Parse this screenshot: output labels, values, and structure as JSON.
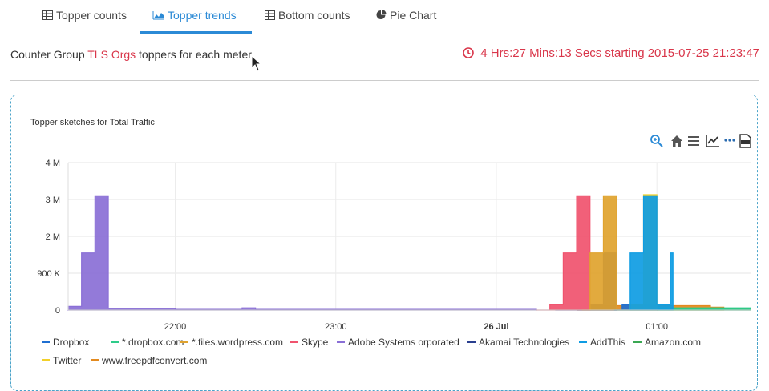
{
  "tabs": [
    {
      "label": "Topper counts",
      "icon": "table-icon",
      "active": false
    },
    {
      "label": "Topper trends",
      "icon": "area-chart-icon",
      "active": true
    },
    {
      "label": "Bottom counts",
      "icon": "table-icon",
      "active": false
    },
    {
      "label": "Pie Chart",
      "icon": "pie-chart-icon",
      "active": false
    }
  ],
  "header": {
    "prefix": "Counter Group",
    "group": "TLS Orgs",
    "suffix": "toppers for each meter",
    "timer": "4 Hrs:27 Mins:13 Secs starting 2015-07-25 21:23:47"
  },
  "toolbar": [
    "zoom-icon",
    "home-icon",
    "menu-icon",
    "line-chart-icon",
    "more-icon",
    "pdf-icon"
  ],
  "colors": {
    "accent": "#2b8ad6",
    "alert": "#d9364a",
    "panel_border": "#4aa3c9"
  },
  "chart_data": {
    "type": "area",
    "title": "Topper sketches for Total Traffic",
    "xlabel": "",
    "ylabel": "",
    "x_tick_labels": [
      "22:00",
      "23:00",
      "26 Jul",
      "01:00"
    ],
    "y_tick_labels": [
      "0",
      "900 K",
      "2 M",
      "3 M",
      "4 M"
    ],
    "ylim": [
      0,
      4000000
    ],
    "xlim_minutes_from_2130": [
      -10,
      245
    ],
    "grid": true,
    "legend_position": "bottom",
    "series": [
      {
        "name": "Dropbox",
        "color": "#1f6fd1",
        "points": [
          [
            172,
            0
          ],
          [
            187,
            0
          ],
          [
            197,
            150000
          ],
          [
            206,
            150000
          ],
          [
            210,
            0
          ]
        ]
      },
      {
        "name": "*.dropbox.com",
        "color": "#2ecc8a",
        "points": [
          [
            200,
            0
          ],
          [
            210,
            60000
          ],
          [
            245,
            50000
          ]
        ]
      },
      {
        "name": "*.files.wordpress.com",
        "color": "#e0a32e",
        "points": [
          [
            182,
            0
          ],
          [
            185,
            1550000
          ],
          [
            190,
            3100000
          ],
          [
            195,
            0
          ]
        ]
      },
      {
        "name": "Skype",
        "color": "#f0536e",
        "points": [
          [
            165,
            0
          ],
          [
            170,
            150000
          ],
          [
            175,
            1550000
          ],
          [
            180,
            3100000
          ],
          [
            185,
            0
          ]
        ]
      },
      {
        "name": "Adobe Systems orporated",
        "color": "#8a6fd6",
        "points": [
          [
            -10,
            100000
          ],
          [
            -5,
            1550000
          ],
          [
            0,
            3100000
          ],
          [
            5,
            50000
          ],
          [
            30,
            20000
          ],
          [
            55,
            60000
          ],
          [
            60,
            20000
          ],
          [
            165,
            20000
          ]
        ]
      },
      {
        "name": "Akamai Technologies",
        "color": "#2a3f8f",
        "points": [
          [
            180,
            0
          ],
          [
            185,
            150000
          ],
          [
            190,
            1550000
          ],
          [
            195,
            0
          ]
        ]
      },
      {
        "name": "AddThis",
        "color": "#0e9ce3",
        "points": [
          [
            194,
            0
          ],
          [
            200,
            1550000
          ],
          [
            205,
            3100000
          ],
          [
            210,
            150000
          ],
          [
            215,
            1550000
          ],
          [
            216,
            0
          ]
        ]
      },
      {
        "name": "Amazon.com",
        "color": "#3aa853",
        "points": [
          [
            210,
            0
          ],
          [
            215,
            30000
          ],
          [
            245,
            30000
          ]
        ]
      },
      {
        "name": "Twitter",
        "color": "#f2d02a",
        "points": [
          [
            195,
            0
          ],
          [
            200,
            150000
          ],
          [
            205,
            3130000
          ],
          [
            210,
            0
          ]
        ]
      },
      {
        "name": "www.freepdfconvert.com",
        "color": "#e38a1f",
        "points": [
          [
            180,
            0
          ],
          [
            185,
            120000
          ],
          [
            230,
            80000
          ],
          [
            235,
            0
          ]
        ]
      }
    ]
  }
}
